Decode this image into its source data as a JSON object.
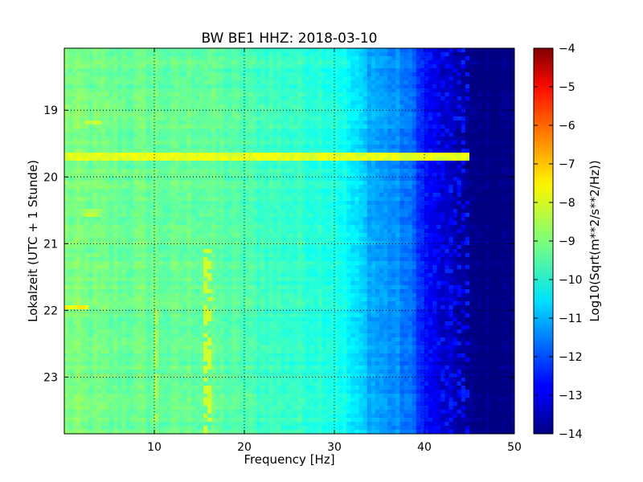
{
  "chart_data": {
    "type": "heatmap",
    "title": "BW BE1 HHZ: 2018-03-10",
    "xlabel": "Frequency [Hz]",
    "ylabel": "Lokalzeit (UTC + 1 Stunde)",
    "xlim": [
      0,
      50
    ],
    "ylim": [
      18.07,
      23.85
    ],
    "y_inverted": true,
    "x_ticks": [
      10,
      20,
      30,
      40,
      50
    ],
    "y_ticks": [
      19,
      20,
      21,
      22,
      23
    ],
    "grid": true,
    "colormap": "jet",
    "colorbar": {
      "label": "Log10(Sqrt(m**2/s**2/Hz))",
      "range": [
        -14,
        -4
      ],
      "ticks": [
        -4,
        -5,
        -6,
        -7,
        -8,
        -9,
        -10,
        -11,
        -12,
        -13,
        -14
      ]
    },
    "spectrum_profile": {
      "frequency_hz": [
        0,
        2,
        5,
        8,
        10,
        12,
        15,
        18,
        20,
        22,
        25,
        28,
        30,
        31,
        32,
        33,
        34,
        35,
        36,
        37,
        38,
        39,
        40,
        41,
        42,
        43,
        44,
        45,
        50
      ],
      "level": [
        -9.0,
        -9.1,
        -9.2,
        -9.2,
        -9.2,
        -9.3,
        -9.2,
        -9.4,
        -9.5,
        -9.6,
        -9.7,
        -9.8,
        -9.9,
        -10.1,
        -10.5,
        -10.7,
        -11.0,
        -11.2,
        -11.3,
        -11.4,
        -11.6,
        -11.9,
        -12.6,
        -13.0,
        -13.3,
        -13.5,
        -13.6,
        -14.0,
        -14.0
      ]
    },
    "transients": [
      {
        "time": 19.7,
        "freq_range": [
          0,
          45
        ],
        "level": -8.0
      },
      {
        "time": 19.2,
        "freq_range": [
          2.5,
          4
        ],
        "level": -8.3
      },
      {
        "time": 21.95,
        "freq_range": [
          0,
          2.5
        ],
        "level": -7.8
      },
      {
        "time": 20.55,
        "freq_range": [
          2.5,
          4
        ],
        "level": -8.5
      }
    ],
    "persistent_lines": [
      {
        "frequency_hz": 15.8,
        "time_range": [
          21.0,
          23.85
        ],
        "level": -8.2
      },
      {
        "frequency_hz": 10.2,
        "time_range": [
          22.0,
          23.7
        ],
        "level": -8.6
      }
    ]
  }
}
